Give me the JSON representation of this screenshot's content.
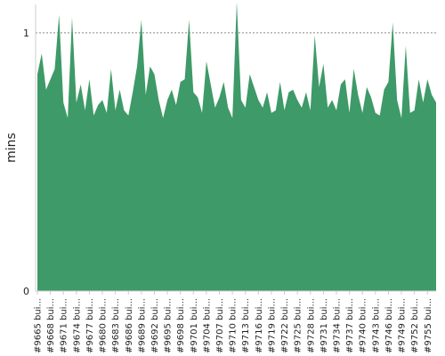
{
  "chart_data": {
    "type": "area",
    "ylabel": "mins",
    "ylim": [
      0,
      1.11
    ],
    "yticks": [
      0,
      1
    ],
    "ytick_labels": [
      "0",
      "1"
    ],
    "grid": "dashed line at y=1",
    "series": [
      {
        "color": "#3e9a68",
        "values": [
          0.84,
          0.92,
          0.78,
          0.82,
          0.86,
          1.07,
          0.73,
          0.67,
          1.06,
          0.73,
          0.8,
          0.7,
          0.82,
          0.68,
          0.72,
          0.74,
          0.69,
          0.86,
          0.7,
          0.78,
          0.7,
          0.68,
          0.77,
          0.87,
          1.05,
          0.76,
          0.87,
          0.84,
          0.74,
          0.67,
          0.74,
          0.78,
          0.72,
          0.81,
          0.82,
          1.05,
          0.77,
          0.75,
          0.69,
          0.89,
          0.8,
          0.71,
          0.75,
          0.81,
          0.71,
          0.67,
          1.12,
          0.74,
          0.71,
          0.84,
          0.79,
          0.74,
          0.71,
          0.77,
          0.69,
          0.7,
          0.81,
          0.7,
          0.77,
          0.78,
          0.74,
          0.71,
          0.77,
          0.7,
          0.99,
          0.79,
          0.88,
          0.71,
          0.74,
          0.7,
          0.8,
          0.82,
          0.69,
          0.86,
          0.76,
          0.69,
          0.79,
          0.75,
          0.69,
          0.68,
          0.78,
          0.81,
          1.04,
          0.74,
          0.67,
          0.95,
          0.69,
          0.7,
          0.82,
          0.73,
          0.82,
          0.76,
          0.73
        ]
      }
    ],
    "xtick_labels": [
      "#9665 bui...",
      "#9668 bui...",
      "#9671 bui...",
      "#9674 bui...",
      "#9677 bui...",
      "#9680 bui...",
      "#9683 bui...",
      "#9686 bui...",
      "#9689 bui...",
      "#9692 bui...",
      "#9695 bui...",
      "#9698 bui...",
      "#9701 bui...",
      "#9704 bui...",
      "#9707 bui...",
      "#9710 bui...",
      "#9713 bui...",
      "#9716 bui...",
      "#9719 bui...",
      "#9722 bui...",
      "#9725 bui...",
      "#9728 bui...",
      "#9731 bui...",
      "#9734 bui...",
      "#9737 bui...",
      "#9740 bui...",
      "#9743 bui...",
      "#9746 bui...",
      "#9749 bui...",
      "#9752 bui...",
      "#9755 bui..."
    ]
  }
}
